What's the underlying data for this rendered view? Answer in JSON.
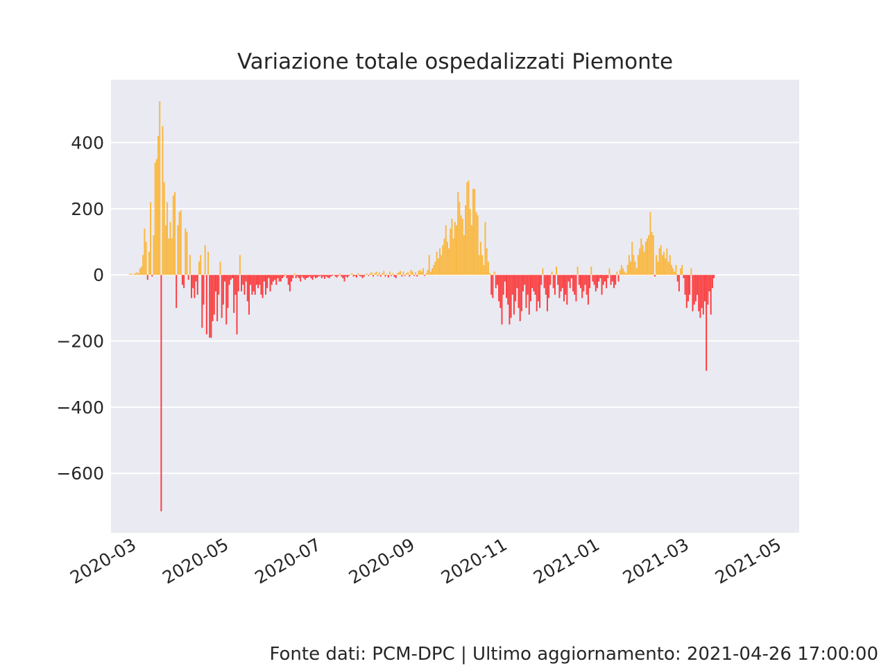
{
  "chart_data": {
    "type": "bar",
    "title": "Variazione totale ospedalizzati Piemonte",
    "xlabel": "",
    "ylabel": "",
    "source_note": "Fonte dati: PCM-DPC | Ultimo aggiornamento: 2021-04-26 17:00:00",
    "x_range": [
      "2020-02-24",
      "2021-04-26"
    ],
    "ylim": [
      -780,
      590
    ],
    "y_ticks": [
      {
        "value": 400,
        "label": "400"
      },
      {
        "value": 200,
        "label": "200"
      },
      {
        "value": 0,
        "label": "0"
      },
      {
        "value": -200,
        "label": "−200"
      },
      {
        "value": -400,
        "label": "−400"
      },
      {
        "value": -600,
        "label": "−600"
      }
    ],
    "x_ticks": [
      {
        "date": "2020-03-01",
        "label": "2020-03"
      },
      {
        "date": "2020-05-01",
        "label": "2020-05"
      },
      {
        "date": "2020-07-01",
        "label": "2020-07"
      },
      {
        "date": "2020-09-01",
        "label": "2020-09"
      },
      {
        "date": "2020-11-01",
        "label": "2020-11"
      },
      {
        "date": "2021-01-01",
        "label": "2021-01"
      },
      {
        "date": "2021-03-01",
        "label": "2021-03"
      },
      {
        "date": "2021-05-01",
        "label": "2021-05"
      }
    ],
    "grid": true,
    "colors": {
      "positive": "#ffa500",
      "negative": "#ff0000",
      "background": "#eaeaf2",
      "grid": "#ffffff"
    },
    "series": [
      {
        "start": "2020-02-24",
        "values": [
          0,
          0,
          0,
          2,
          4,
          1,
          3,
          5,
          8,
          5,
          20,
          25,
          60,
          140,
          100,
          -15,
          70,
          220,
          -5,
          120,
          340,
          350,
          420,
          525,
          -715,
          450,
          280,
          150,
          220,
          110,
          160,
          110,
          240,
          250,
          -100,
          150,
          190,
          195,
          -30,
          -40,
          140,
          130,
          -15,
          60,
          -70,
          -40,
          -70,
          -20,
          -60,
          40,
          60,
          -160,
          -90,
          90,
          -180,
          70,
          -190,
          -190,
          -140,
          -120,
          -50,
          -140,
          -60,
          40,
          -130,
          -90,
          -20,
          -150,
          -100,
          -30,
          -15,
          -10,
          -115,
          -60,
          -180,
          -50,
          60,
          -50,
          -30,
          -60,
          -20,
          -80,
          -120,
          -30,
          -60,
          -50,
          -60,
          -30,
          -40,
          -30,
          -60,
          -70,
          -20,
          -60,
          -40,
          -10,
          -50,
          -30,
          -20,
          -15,
          -30,
          -10,
          -20,
          -20,
          -10,
          -5,
          3,
          -10,
          -30,
          -50,
          -20,
          -10,
          5,
          -10,
          -5,
          -10,
          -20,
          -5,
          -10,
          -15,
          -10,
          -8,
          -5,
          -10,
          -15,
          -5,
          -10,
          -8,
          -5,
          -3,
          -10,
          -5,
          -12,
          -5,
          -8,
          -10,
          -5,
          -3,
          2,
          -5,
          -8,
          -3,
          4,
          -5,
          -10,
          -20,
          -5,
          -8,
          -3,
          2,
          5,
          -5,
          -3,
          -8,
          5,
          -3,
          -5,
          -10,
          -5,
          3,
          4,
          -3,
          5,
          8,
          -5,
          5,
          10,
          -3,
          8,
          -5,
          5,
          12,
          -5,
          3,
          -8,
          10,
          -3,
          5,
          -6,
          -10,
          5,
          8,
          12,
          -5,
          10,
          -3,
          5,
          8,
          -5,
          15,
          10,
          -3,
          8,
          -5,
          12,
          15,
          10,
          20,
          -3,
          5,
          15,
          60,
          10,
          20,
          30,
          40,
          70,
          50,
          80,
          60,
          90,
          110,
          150,
          100,
          80,
          140,
          170,
          110,
          160,
          150,
          250,
          220,
          180,
          170,
          120,
          210,
          280,
          285,
          200,
          150,
          260,
          260,
          190,
          180,
          60,
          100,
          60,
          30,
          160,
          80,
          40,
          5,
          -60,
          -70,
          10,
          -40,
          -30,
          -80,
          -100,
          -150,
          -60,
          -20,
          -70,
          -90,
          -150,
          -130,
          -60,
          -120,
          -80,
          -40,
          -100,
          -140,
          -110,
          -50,
          -30,
          -100,
          -60,
          -120,
          -80,
          -40,
          -50,
          -60,
          -110,
          -80,
          -100,
          -30,
          20,
          -40,
          -60,
          -110,
          -70,
          -30,
          10,
          -40,
          -60,
          25,
          -30,
          -70,
          -50,
          -40,
          -80,
          -60,
          -90,
          -20,
          -40,
          -10,
          -50,
          -60,
          -80,
          25,
          -30,
          -40,
          -70,
          -50,
          -30,
          -60,
          -90,
          -40,
          25,
          -20,
          -30,
          -50,
          -40,
          -20,
          -10,
          -60,
          -30,
          -20,
          -40,
          -10,
          20,
          -30,
          -20,
          -40,
          -30,
          10,
          -20,
          15,
          30,
          20,
          10,
          5,
          30,
          60,
          40,
          100,
          60,
          40,
          20,
          60,
          80,
          110,
          90,
          70,
          100,
          110,
          120,
          190,
          130,
          120,
          -5,
          60,
          40,
          80,
          90,
          60,
          70,
          50,
          80,
          40,
          60,
          30,
          20,
          10,
          30,
          -20,
          -50,
          20,
          30,
          -10,
          -60,
          -100,
          -80,
          -60,
          20,
          -110,
          -90,
          -80,
          -60,
          -110,
          -130,
          -100,
          -120,
          -80,
          -290,
          -90,
          -50,
          -120,
          -40,
          -10
        ]
      }
    ]
  }
}
